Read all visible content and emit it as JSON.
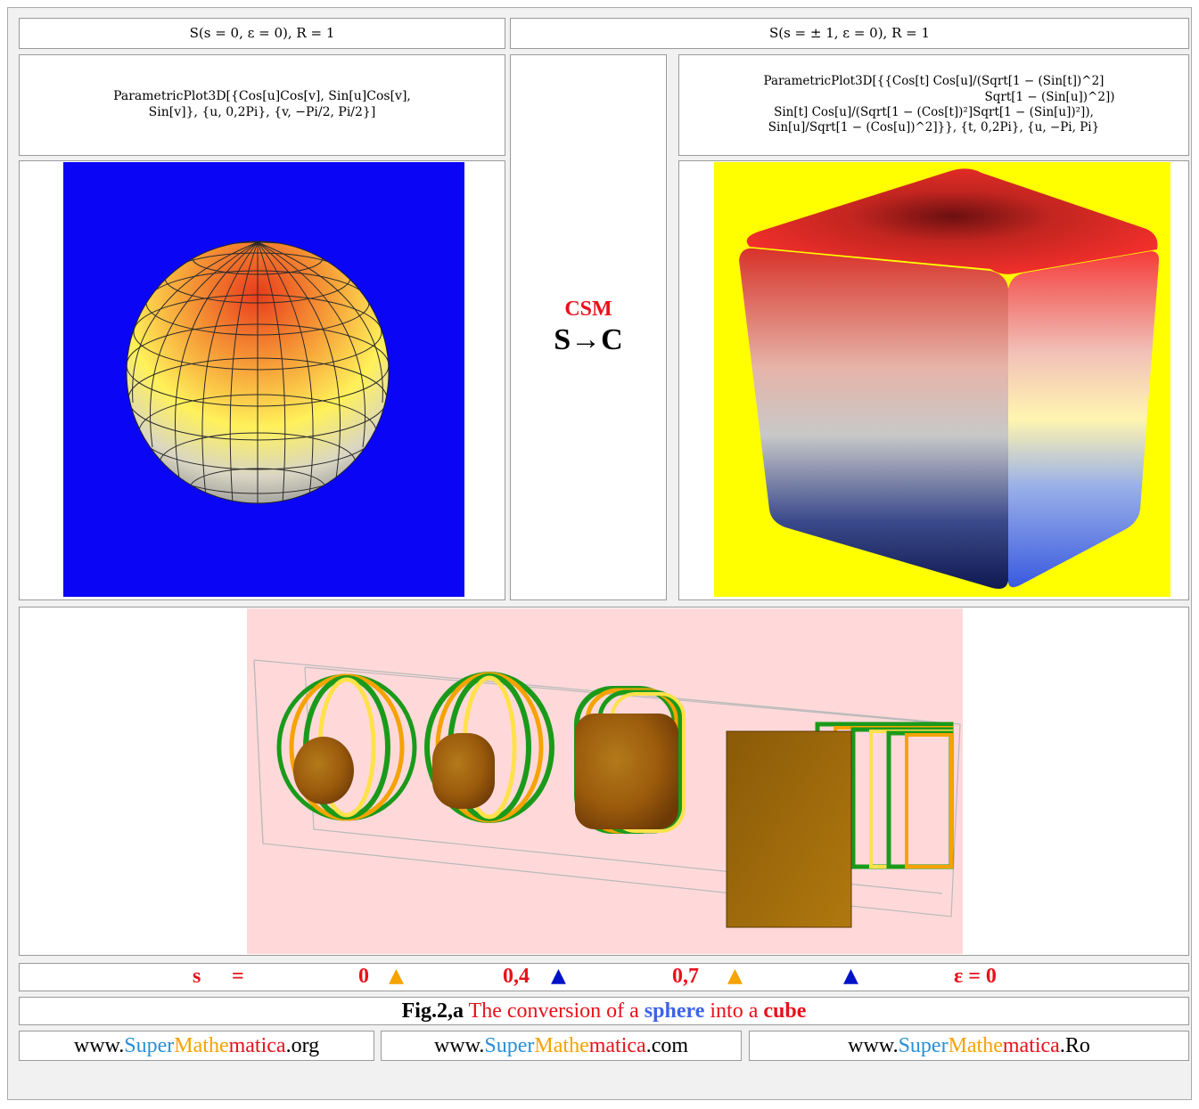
{
  "header": {
    "left": "S(s  =  0, ε  =  0), R  =  1",
    "right": "S(s  =  ± 1, ε  =  0), R  =  1"
  },
  "formula_left": {
    "line1": "ParametricPlot3D[{Cos[u]Cos[v], Sin[u]Cos[v],",
    "line2": "Sin[v]}, {u, 0,2Pi}, {v, −Pi/2, Pi/2}]"
  },
  "formula_right": {
    "line1": "ParametricPlot3D[{{Cos[t] Cos[u]/(Sqrt[1 − (Sin[t])^2]",
    "line2": "Sqrt[1 − (Sin[u])^2])",
    "line3": "Sin[t] Cos[u]/(Sqrt[1 − (Cos[t])²]Sqrt[1 − (Sin[u])²]),",
    "line4": "Sin[u]/Sqrt[1 − (Cos[u])^2]}}, {t, 0,2Pi}, {u, −Pi, Pi}"
  },
  "middle": {
    "csm": "CSM",
    "transform": "S→C"
  },
  "colors": {
    "sphere_bg": "#0a06f5",
    "cube_bg": "#ffff00",
    "strip_bg": "#ffd9da",
    "accent_red": "#e8111b"
  },
  "legend": {
    "s_label": "s",
    "equals": "=",
    "v1": "0",
    "v2": "0,4",
    "v3": "0,7",
    "eps": "ε = 0",
    "markers": [
      "orange-triangle",
      "blue-triangle",
      "orange-triangle",
      "blue-triangle"
    ]
  },
  "caption": {
    "fig": "Fig.2,a",
    "t1": " The conversion of a ",
    "sphere": "sphere",
    "t2": " into a ",
    "cube": "cube"
  },
  "footer": {
    "links": [
      {
        "www": "www.",
        "super": "Super",
        "mathe": "Mathe",
        "matica": "matica",
        "tld": ".org"
      },
      {
        "www": "www.",
        "super": "Super",
        "mathe": "Mathe",
        "matica": "matica",
        "tld": ".com"
      },
      {
        "www": "www.",
        "super": "Super",
        "mathe": "Mathe",
        "matica": "matica",
        "tld": ".Ro"
      }
    ]
  }
}
